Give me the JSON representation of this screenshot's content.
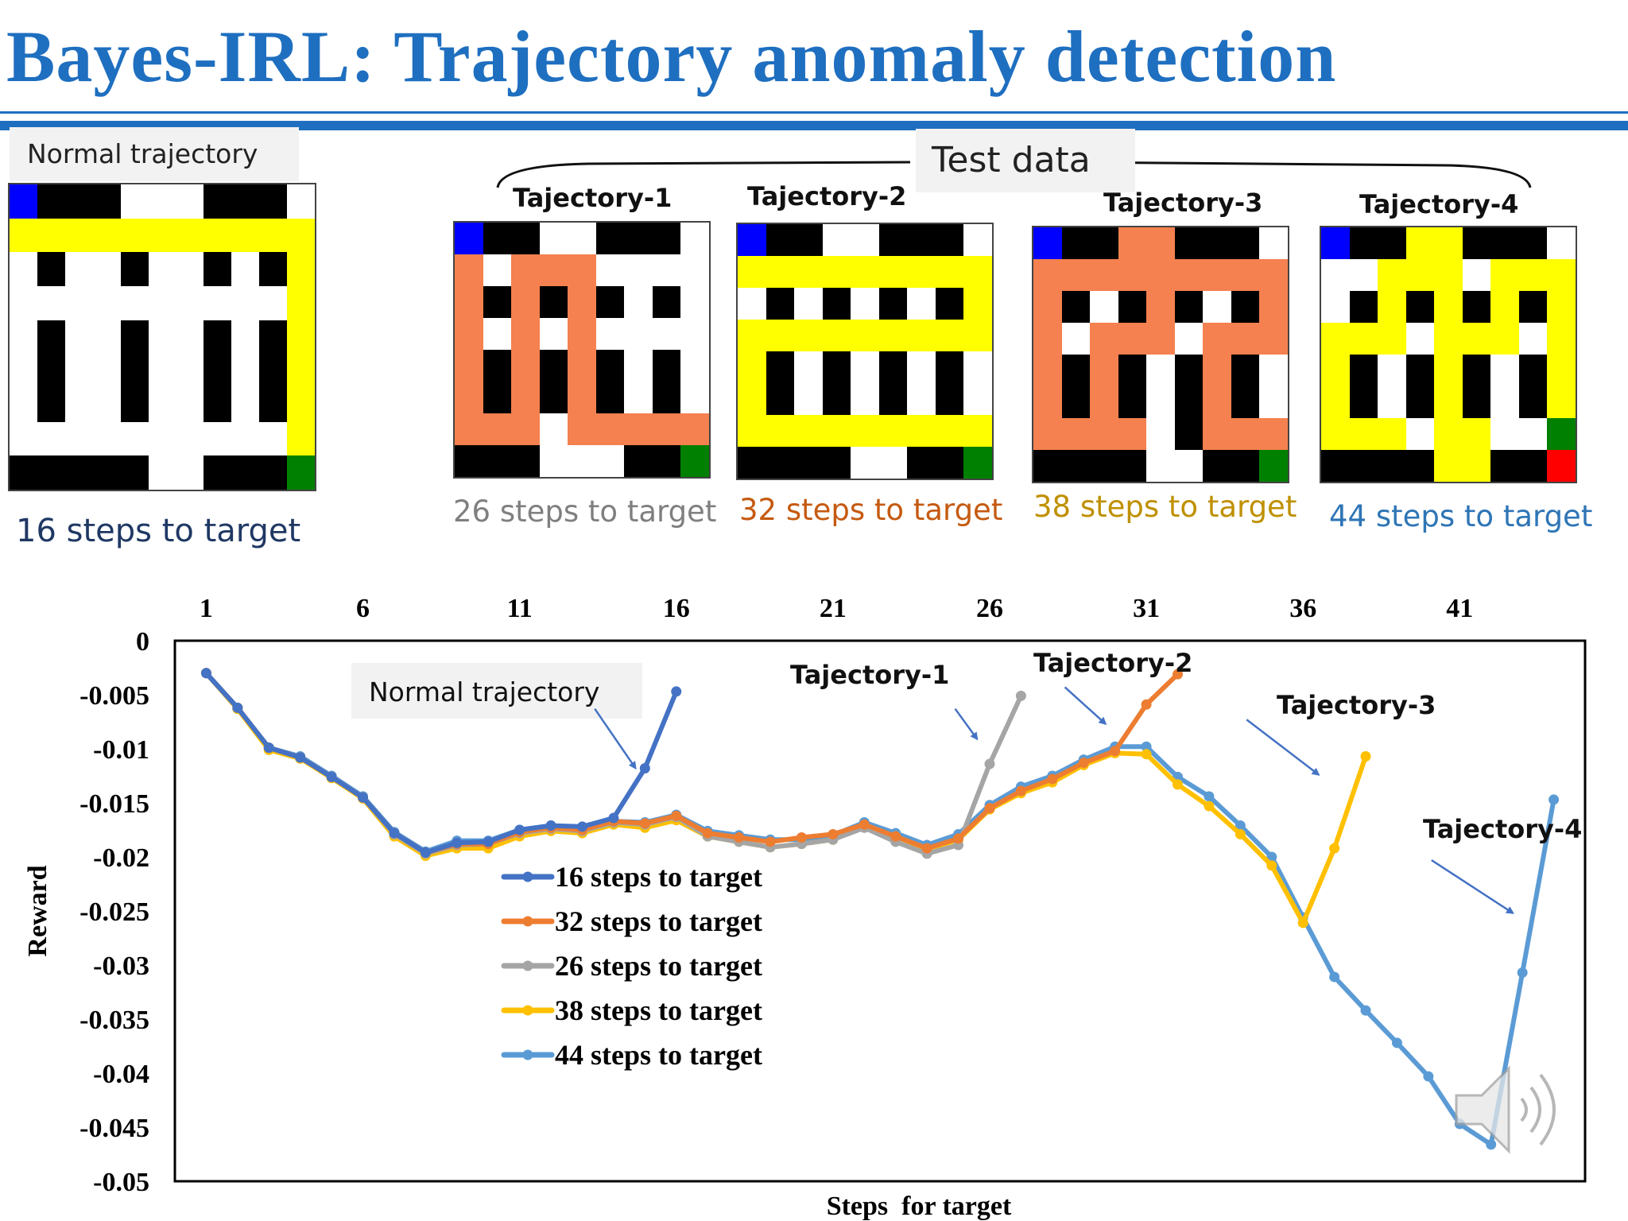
{
  "slide": {
    "title": "Bayes-IRL: Trajectory anomaly detection",
    "normal_label": "Normal trajectory",
    "test_label": "Test  data",
    "normal_steps": "16 steps to target",
    "trajectories": [
      {
        "title": "Tajectory-1",
        "steps": "26 steps to target",
        "color": "#7f7f7f"
      },
      {
        "title": "Tajectory-2",
        "steps": "32 steps to target",
        "color": "#c55a11"
      },
      {
        "title": "Tajectory-3",
        "steps": "38 steps to target",
        "color": "#bf9000"
      },
      {
        "title": "Tajectory-4",
        "steps": "44 steps to target",
        "color": "#2e75b6"
      }
    ]
  },
  "mazes": [
    {
      "name": "normal",
      "path_color": "#ffff00",
      "rows": [
        "BKKKWWWKKKW",
        "PPPPPPPPPPP",
        "WKWWKWWKWKP",
        "WWWWWWWWWWP",
        "WKWWKWWKWKP",
        "WKWWKWWKWKP",
        "WKWWKWWKWKP",
        "WWWWWWWWWWP",
        "KKKKKWWKKKG"
      ]
    },
    {
      "name": "trajectory-1",
      "path_color": "#f4814f",
      "rows": [
        "BKKWWKKKW",
        "PWPPPWWWW",
        "PKPKPKWKW",
        "PWPWPWWWW",
        "PKPKPKWKW",
        "PKPKPKWKW",
        "PPPWPPPPP",
        "KKKWWWKKG"
      ]
    },
    {
      "name": "trajectory-2",
      "path_color": "#ffff00",
      "rows": [
        "BKKWWKKKW",
        "PPPPPPPPP",
        "WKWKWKWKP",
        "PPPPPPPPP",
        "PKWKWKWKW",
        "PKWKWKWKW",
        "PPPPPPPPP",
        "KKKKWWKKG"
      ]
    },
    {
      "name": "trajectory-3",
      "path_color": "#f4814f",
      "rows": [
        "BKKPPKKKW",
        "PPPPPPPPP",
        "PKWKPKWKP",
        "PWPPPWPPP",
        "PKPKWKPKW",
        "PKPKWKPKW",
        "PPPPWKPPP",
        "KKKKWWKKG"
      ]
    },
    {
      "name": "trajectory-4",
      "path_color": "#ffff00",
      "rows": [
        "BKKPPKKKW",
        "WWPPPWPPP",
        "WKPKPKPKP",
        "PPPWPPPWP",
        "PKWKPKWKP",
        "PKWKPKWKP",
        "PPPWPPWWG",
        "KKKKPPKKR"
      ]
    }
  ],
  "chart_data": {
    "type": "line",
    "xlabel": "Steps  for target",
    "ylabel": "Reward",
    "x_ticks": [
      "1",
      "6",
      "11",
      "16",
      "21",
      "26",
      "31",
      "36",
      "41"
    ],
    "y_ticks": [
      "0",
      "-0.005",
      "-0.01",
      "-0.015",
      "-0.02",
      "-0.025",
      "-0.03",
      "-0.035",
      "-0.04",
      "-0.045",
      "-0.05"
    ],
    "xlim": [
      0,
      45
    ],
    "ylim": [
      -0.05,
      0
    ],
    "series": [
      {
        "name": "44 steps to target",
        "color": "#5b9bd5",
        "values": [
          -0.003,
          -0.0063,
          -0.0099,
          -0.0107,
          -0.0125,
          -0.0144,
          -0.0177,
          -0.0195,
          -0.0185,
          -0.0185,
          -0.0175,
          -0.0171,
          -0.0173,
          -0.0167,
          -0.0168,
          -0.0161,
          -0.0176,
          -0.018,
          -0.0184,
          -0.0184,
          -0.018,
          -0.0168,
          -0.0178,
          -0.0189,
          -0.0179,
          -0.0152,
          -0.0135,
          -0.0125,
          -0.011,
          -0.0098,
          -0.0098,
          -0.0126,
          -0.0144,
          -0.0171,
          -0.02,
          -0.0256,
          -0.0311,
          -0.0342,
          -0.0372,
          -0.0403,
          -0.0447,
          -0.0466,
          -0.0307,
          -0.0147
        ]
      },
      {
        "name": "38 steps to target",
        "color": "#ffc000",
        "values": [
          -0.003,
          -0.0063,
          -0.0101,
          -0.0109,
          -0.0127,
          -0.0146,
          -0.0181,
          -0.0199,
          -0.0192,
          -0.0192,
          -0.0181,
          -0.0176,
          -0.0178,
          -0.017,
          -0.0173,
          -0.0166,
          -0.0181,
          -0.0186,
          -0.0191,
          -0.0188,
          -0.0184,
          -0.0171,
          -0.0181,
          -0.0193,
          -0.0184,
          -0.0156,
          -0.0141,
          -0.0131,
          -0.0115,
          -0.0104,
          -0.0105,
          -0.0133,
          -0.0153,
          -0.0179,
          -0.0208,
          -0.0261,
          -0.0192,
          -0.0107
        ]
      },
      {
        "name": "26 steps to target",
        "color": "#a5a5a5",
        "values": [
          -0.003,
          -0.0062,
          -0.0099,
          -0.0108,
          -0.0126,
          -0.0145,
          -0.0179,
          -0.0197,
          -0.0189,
          -0.0188,
          -0.0178,
          -0.0174,
          -0.0176,
          -0.0168,
          -0.017,
          -0.0163,
          -0.0181,
          -0.0186,
          -0.0191,
          -0.0188,
          -0.0184,
          -0.0173,
          -0.0186,
          -0.0197,
          -0.0189,
          -0.0114,
          -0.0051
        ]
      },
      {
        "name": "32 steps to target",
        "color": "#ed7d31",
        "values": [
          -0.003,
          -0.0062,
          -0.0099,
          -0.0108,
          -0.0126,
          -0.0145,
          -0.0178,
          -0.0196,
          -0.0188,
          -0.0188,
          -0.0177,
          -0.0173,
          -0.0175,
          -0.0167,
          -0.0169,
          -0.0162,
          -0.0178,
          -0.0182,
          -0.0186,
          -0.0182,
          -0.0179,
          -0.017,
          -0.0181,
          -0.0192,
          -0.0183,
          -0.0155,
          -0.0139,
          -0.0128,
          -0.0113,
          -0.0102,
          -0.0059,
          -0.0031
        ]
      },
      {
        "name": "16 steps to target",
        "color": "#4472c4",
        "values": [
          -0.003,
          -0.0062,
          -0.0099,
          -0.0108,
          -0.0126,
          -0.0145,
          -0.0178,
          -0.0196,
          -0.0187,
          -0.0186,
          -0.0175,
          -0.0171,
          -0.0172,
          -0.0164,
          -0.0118,
          -0.0047
        ]
      }
    ],
    "legend": [
      "16 steps to target",
      "32 steps to target",
      "26 steps to target",
      "38 steps to target",
      "44 steps to target"
    ],
    "annotations": [
      {
        "text": "Normal trajectory",
        "x_from": 13.4,
        "y_from": -0.0063,
        "x_to": 14.7,
        "y_to": -0.0118
      },
      {
        "text": "Tajectory-1",
        "x_from": 24.9,
        "y_from": -0.0063,
        "x_to": 25.6,
        "y_to": -0.0091
      },
      {
        "text": "Tajectory-2",
        "x_from": 28.4,
        "y_from": -0.0043,
        "x_to": 29.7,
        "y_to": -0.0077
      },
      {
        "text": "Tajectory-3",
        "x_from": 34.2,
        "y_from": -0.0073,
        "x_to": 36.5,
        "y_to": -0.0124
      },
      {
        "text": "Tajectory-4",
        "x_from": 40.1,
        "y_from": -0.0203,
        "x_to": 42.7,
        "y_to": -0.0252
      }
    ]
  }
}
